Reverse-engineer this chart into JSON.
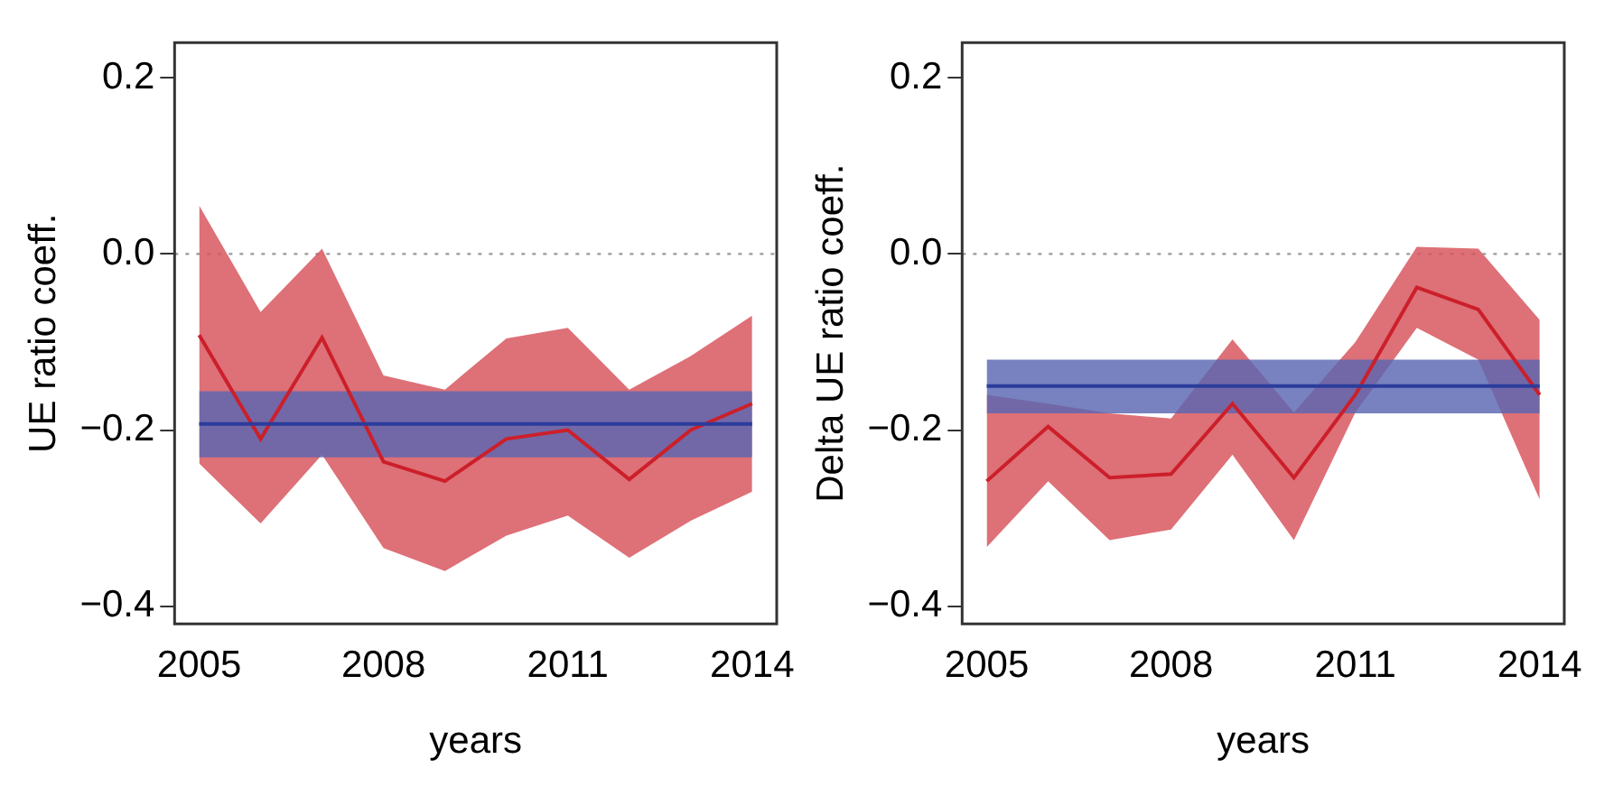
{
  "chart_data": [
    {
      "type": "line",
      "ylabel": "UE ratio coeff.",
      "xlabel": "years",
      "x": [
        2005,
        2006,
        2007,
        2008,
        2009,
        2010,
        2011,
        2012,
        2013,
        2014
      ],
      "xlim": [
        2004.6,
        2014.4
      ],
      "xticks": [
        2005,
        2008,
        2011,
        2014
      ],
      "ylim": [
        -0.42,
        0.24
      ],
      "yticks": [
        {
          "value": -0.4,
          "label": "−0.4"
        },
        {
          "value": -0.2,
          "label": "−0.2"
        },
        {
          "value": 0,
          "label": "0.0"
        },
        {
          "value": 0.2,
          "label": "0.2"
        }
      ],
      "grid": false,
      "legend": false,
      "marker": "none",
      "series": [
        {
          "color": "#cc1f2a",
          "values": [
            -0.092,
            -0.21,
            -0.095,
            -0.236,
            -0.258,
            -0.21,
            -0.2,
            -0.256,
            -0.2,
            -0.17
          ],
          "lower": [
            -0.238,
            -0.306,
            -0.228,
            -0.334,
            -0.36,
            -0.32,
            -0.297,
            -0.345,
            -0.303,
            -0.27
          ],
          "upper": [
            0.055,
            -0.066,
            0.006,
            -0.138,
            -0.154,
            -0.096,
            -0.084,
            -0.154,
            -0.116,
            -0.07
          ]
        },
        {
          "color": "#2b3c9c",
          "values": [
            -0.193,
            -0.193,
            -0.193,
            -0.193,
            -0.193,
            -0.193,
            -0.193,
            -0.193,
            -0.193,
            -0.193
          ],
          "lower": [
            -0.231,
            -0.231,
            -0.231,
            -0.231,
            -0.231,
            -0.231,
            -0.231,
            -0.231,
            -0.231,
            -0.231
          ],
          "upper": [
            -0.156,
            -0.156,
            -0.156,
            -0.156,
            -0.156,
            -0.156,
            -0.156,
            -0.156,
            -0.156,
            -0.156
          ]
        }
      ],
      "ref_lines": [
        {
          "axis": "y",
          "value": 0,
          "color": "#999999",
          "line_style": "dotted"
        }
      ]
    },
    {
      "type": "line",
      "ylabel": "Delta UE ratio coeff.",
      "xlabel": "years",
      "x": [
        2005,
        2006,
        2007,
        2008,
        2009,
        2010,
        2011,
        2012,
        2013,
        2014
      ],
      "xlim": [
        2004.6,
        2014.4
      ],
      "xticks": [
        2005,
        2008,
        2011,
        2014
      ],
      "ylim": [
        -0.42,
        0.24
      ],
      "yticks": [
        {
          "value": -0.4,
          "label": "−0.4"
        },
        {
          "value": -0.2,
          "label": "−0.2"
        },
        {
          "value": 0,
          "label": "0.0"
        },
        {
          "value": 0.2,
          "label": "0.2"
        }
      ],
      "grid": false,
      "legend": false,
      "marker": "none",
      "series": [
        {
          "color": "#cc1f2a",
          "values": [
            -0.258,
            -0.196,
            -0.254,
            -0.25,
            -0.17,
            -0.254,
            -0.16,
            -0.038,
            -0.063,
            -0.16
          ],
          "lower": [
            -0.333,
            -0.258,
            -0.325,
            -0.313,
            -0.228,
            -0.325,
            -0.18,
            -0.084,
            -0.12,
            -0.279
          ],
          "upper": [
            -0.16,
            -0.17,
            -0.181,
            -0.187,
            -0.097,
            -0.18,
            -0.1,
            0.008,
            0.006,
            -0.075
          ]
        },
        {
          "color": "#2b3c9c",
          "values": [
            -0.15,
            -0.15,
            -0.15,
            -0.15,
            -0.15,
            -0.15,
            -0.15,
            -0.15,
            -0.15,
            -0.15
          ],
          "lower": [
            -0.181,
            -0.181,
            -0.181,
            -0.181,
            -0.181,
            -0.181,
            -0.181,
            -0.181,
            -0.181,
            -0.181
          ],
          "upper": [
            -0.12,
            -0.12,
            -0.12,
            -0.12,
            -0.12,
            -0.12,
            -0.12,
            -0.12,
            -0.12,
            -0.12
          ]
        }
      ],
      "ref_lines": [
        {
          "axis": "y",
          "value": 0,
          "color": "#999999",
          "line_style": "dotted"
        }
      ]
    }
  ]
}
